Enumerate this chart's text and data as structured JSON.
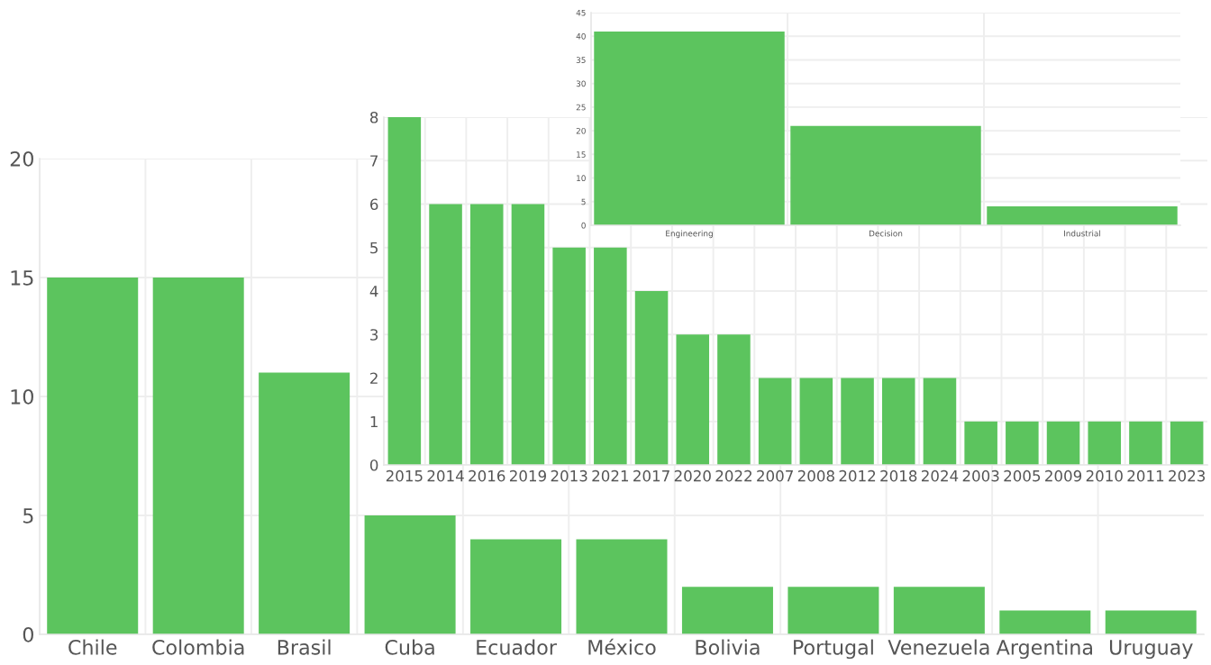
{
  "chart_data": [
    {
      "type": "bar",
      "categories": [
        "Chile",
        "Colombia",
        "Brasil",
        "Cuba",
        "Ecuador",
        "México",
        "Bolivia",
        "Portugal",
        "Venezuela",
        "Argentina",
        "Uruguay"
      ],
      "values": [
        15,
        15,
        11,
        5,
        4,
        4,
        2,
        2,
        2,
        1,
        1
      ],
      "color": "#5cc45e",
      "ylim": [
        0,
        20
      ],
      "yticks": [
        0,
        5,
        10,
        15,
        20
      ],
      "grid": true,
      "legend": false
    },
    {
      "type": "bar",
      "categories": [
        "2015",
        "2014",
        "2016",
        "2019",
        "2013",
        "2021",
        "2017",
        "2020",
        "2022",
        "2007",
        "2008",
        "2012",
        "2018",
        "2024",
        "2003",
        "2005",
        "2009",
        "2010",
        "2011",
        "2023"
      ],
      "values": [
        8,
        6,
        6,
        6,
        5,
        5,
        4,
        3,
        3,
        2,
        2,
        2,
        2,
        2,
        1,
        1,
        1,
        1,
        1,
        1
      ],
      "color": "#5cc45e",
      "ylim": [
        0,
        8
      ],
      "yticks": [
        0,
        1,
        2,
        3,
        4,
        5,
        6,
        7,
        8
      ],
      "grid": true,
      "legend": false
    },
    {
      "type": "bar",
      "categories": [
        "Engineering",
        "Decision",
        "Industrial"
      ],
      "values": [
        41,
        21,
        4
      ],
      "color": "#5cc45e",
      "ylim": [
        0,
        45
      ],
      "yticks": [
        0,
        5,
        10,
        15,
        20,
        25,
        30,
        35,
        40,
        45
      ],
      "grid": true,
      "legend": false
    }
  ]
}
